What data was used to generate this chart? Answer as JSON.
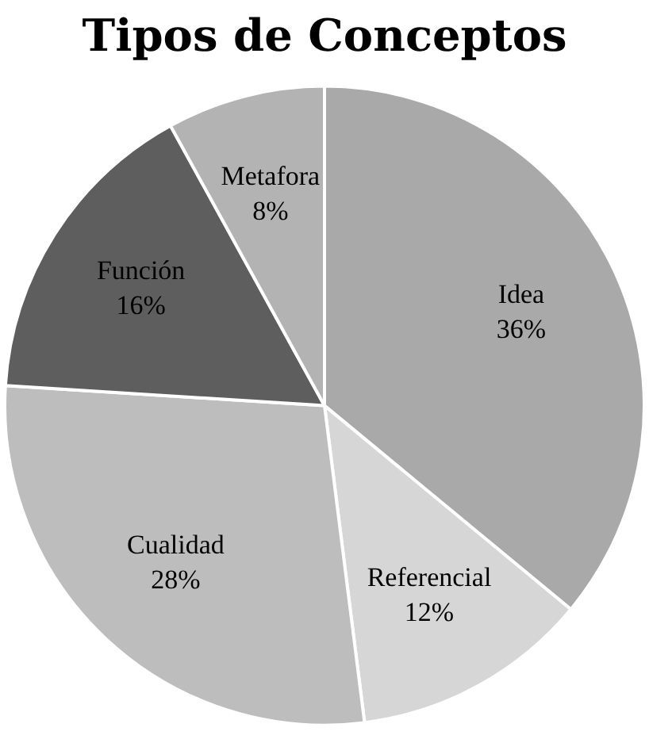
{
  "chart_data": {
    "type": "pie",
    "title": "Tipos de Conceptos",
    "categories": [
      "Idea",
      "Referencial",
      "Cualidad",
      "Función",
      "Metafora"
    ],
    "values": [
      36,
      12,
      28,
      16,
      8
    ],
    "value_labels": [
      "36%",
      "12%",
      "28%",
      "16%",
      "8%"
    ],
    "colors": [
      "#a9a9a9",
      "#d6d6d6",
      "#bdbdbd",
      "#5e5e5e",
      "#b3b3b3"
    ],
    "legend": false
  }
}
